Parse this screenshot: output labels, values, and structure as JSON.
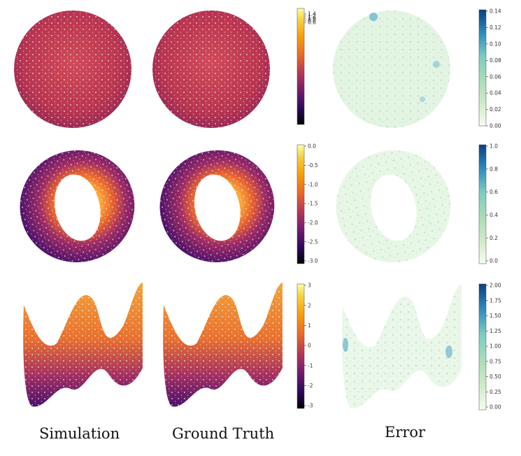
{
  "columns": {
    "simulation": "Simulation",
    "ground_truth": "Ground Truth",
    "error": "Error"
  },
  "rows": [
    {
      "shape": "sphere",
      "value_colorbar": {
        "colormap": "inferno",
        "ticks": [
          "1.4",
          "1.2",
          "1.0",
          "0.8",
          "0.6"
        ],
        "range": [
          0.5,
          1.5
        ]
      },
      "error_colorbar": {
        "colormap": "GnBu",
        "ticks": [
          "0.14",
          "0.12",
          "0.10",
          "0.08",
          "0.06",
          "0.04",
          "0.02",
          "0.00"
        ],
        "range": [
          0.0,
          0.145
        ]
      }
    },
    {
      "shape": "torus",
      "value_colorbar": {
        "colormap": "inferno",
        "ticks": [
          "0.0",
          "-0.5",
          "-1.0",
          "-1.5",
          "-2.0",
          "-2.5",
          "-3.0"
        ],
        "range": [
          -3.0,
          0.0
        ]
      },
      "error_colorbar": {
        "colormap": "GnBu",
        "ticks": [
          "1.0",
          "0.8",
          "0.6",
          "0.4",
          "0.2",
          "0.0"
        ],
        "range": [
          0.0,
          1.0
        ]
      }
    },
    {
      "shape": "wave-surface",
      "value_colorbar": {
        "colormap": "inferno",
        "ticks": [
          "3",
          "2",
          "1",
          "0",
          "-1",
          "-2",
          "-3"
        ],
        "range": [
          -3,
          3
        ]
      },
      "error_colorbar": {
        "colormap": "GnBu",
        "ticks": [
          "2.00",
          "1.75",
          "1.50",
          "1.25",
          "1.00",
          "0.75",
          "0.50",
          "0.25",
          "0.00"
        ],
        "range": [
          0.0,
          2.0
        ]
      }
    }
  ]
}
